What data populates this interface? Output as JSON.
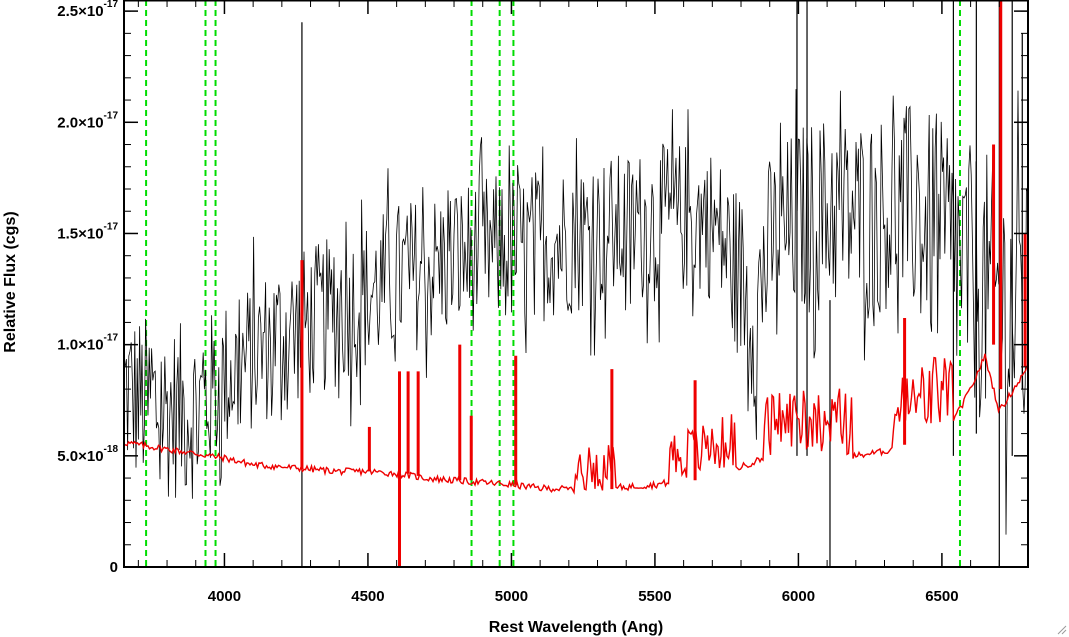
{
  "chart_data": {
    "type": "line",
    "title": "",
    "xlabel": "Rest Wavelength (Ang)",
    "ylabel": "Relative Flux (cgs)",
    "xlim": [
      3650,
      6800
    ],
    "ylim": [
      0,
      2.55e-17
    ],
    "x_ticks": [
      {
        "value": 4000,
        "label": "4000"
      },
      {
        "value": 4500,
        "label": "4500"
      },
      {
        "value": 5000,
        "label": "5000"
      },
      {
        "value": 5500,
        "label": "5500"
      },
      {
        "value": 6000,
        "label": "6000"
      },
      {
        "value": 6500,
        "label": "6500"
      }
    ],
    "y_ticks": [
      {
        "value": 0,
        "mantissa": "0",
        "exponent": ""
      },
      {
        "value": 5e-18,
        "mantissa": "5.0×10",
        "exponent": "-18"
      },
      {
        "value": 1e-17,
        "mantissa": "1.0×10",
        "exponent": "-17"
      },
      {
        "value": 1.5e-17,
        "mantissa": "1.5×10",
        "exponent": "-17"
      },
      {
        "value": 2e-17,
        "mantissa": "2.0×10",
        "exponent": "-17"
      },
      {
        "value": 2.5e-17,
        "mantissa": "2.5×10",
        "exponent": "-17"
      }
    ],
    "grid": false,
    "vertical_markers": {
      "color": "#00dd00",
      "style": "dashed",
      "x": [
        3727,
        3934,
        3969,
        4861,
        4959,
        5007,
        6563
      ]
    },
    "series": [
      {
        "color": "#000000",
        "style": "noisy-spectrum",
        "x": [
          3650,
          3700,
          3800,
          3900,
          4000,
          4100,
          4200,
          4300,
          4400,
          4500,
          4600,
          4700,
          4800,
          4900,
          5000,
          5100,
          5200,
          5300,
          5400,
          5500,
          5600,
          5700,
          5800,
          5850,
          5900,
          6000,
          6100,
          6200,
          6300,
          6400,
          6500,
          6600,
          6700,
          6800
        ],
        "y": [
          8e-18,
          7.5e-18,
          7e-18,
          7e-18,
          8.5e-18,
          9.5e-18,
          1.05e-17,
          1.1e-17,
          1.15e-17,
          1.22e-17,
          1.3e-17,
          1.33e-17,
          1.38e-17,
          1.42e-17,
          1.42e-17,
          1.45e-17,
          1.48e-17,
          1.5e-17,
          1.52e-17,
          1.55e-17,
          1.57e-17,
          1.55e-17,
          1.3e-17,
          1.1e-17,
          1.45e-17,
          1.55e-17,
          1.6e-17,
          1.58e-17,
          1.6e-17,
          1.6e-17,
          1.45e-17,
          1.3e-17,
          1.2e-17,
          1.1e-17
        ],
        "noise": [
          4e-18,
          4e-18,
          4e-18,
          4e-18,
          3.5e-18,
          3.5e-18,
          3.5e-18,
          3.5e-18,
          3.5e-18,
          3.5e-18,
          3.5e-18,
          3.5e-18,
          3.5e-18,
          3.5e-18,
          3.5e-18,
          3.5e-18,
          3.5e-18,
          3.5e-18,
          3.5e-18,
          3.5e-18,
          3.5e-18,
          3.5e-18,
          4e-18,
          4e-18,
          4e-18,
          4.5e-18,
          4.5e-18,
          4.5e-18,
          4.5e-18,
          5e-18,
          5.5e-18,
          6e-18,
          6.5e-18,
          6.5e-18
        ],
        "spikes": [
          {
            "x": 4270,
            "low": 0,
            "high": 2.45e-17
          },
          {
            "x": 5995,
            "low": 5e-18,
            "high": 2.6e-17
          },
          {
            "x": 6030,
            "low": 5e-18,
            "high": 2.6e-17
          },
          {
            "x": 6110,
            "low": 0,
            "high": 1.2e-17
          },
          {
            "x": 6540,
            "low": 5e-18,
            "high": 2.6e-17
          },
          {
            "x": 6620,
            "low": 6e-18,
            "high": 2.6e-17
          },
          {
            "x": 6700,
            "low": 0,
            "high": 2.6e-17
          },
          {
            "x": 6745,
            "low": 5e-18,
            "high": 2.6e-17
          },
          {
            "x": 6780,
            "low": 8e-18,
            "high": 2.4e-17
          }
        ]
      },
      {
        "color": "#ee0000",
        "style": "error-spectrum",
        "x": [
          3650,
          3800,
          3900,
          4000,
          4100,
          4200,
          4300,
          4400,
          4500,
          4600,
          4700,
          4800,
          4900,
          5000,
          5100,
          5200,
          5300,
          5400,
          5500,
          5600,
          5700,
          5800,
          5900,
          6000,
          6100,
          6200,
          6300,
          6400,
          6500,
          6550,
          6600,
          6650,
          6700,
          6750,
          6800
        ],
        "y": [
          5.6e-18,
          5.3e-18,
          5.1e-18,
          4.9e-18,
          4.6e-18,
          4.5e-18,
          4.4e-18,
          4.3e-18,
          4.3e-18,
          4.2e-18,
          4e-18,
          3.9e-18,
          3.8e-18,
          3.7e-18,
          3.55e-18,
          3.5e-18,
          3.5e-18,
          3.6e-18,
          3.7e-18,
          3.9e-18,
          4.2e-18,
          4.5e-18,
          5e-18,
          5.3e-18,
          5e-18,
          5e-18,
          5.2e-18,
          5.6e-18,
          6.2e-18,
          6.8e-18,
          8e-18,
          9.5e-18,
          7e-18,
          8e-18,
          9e-18
        ],
        "spikes": [
          {
            "x": 4270,
            "low": 4.4e-18,
            "high": 1.38e-17
          },
          {
            "x": 4505,
            "low": 4.3e-18,
            "high": 6.3e-18
          },
          {
            "x": 4610,
            "low": 0,
            "high": 8.8e-18
          },
          {
            "x": 4640,
            "low": 4.2e-18,
            "high": 8.8e-18
          },
          {
            "x": 4675,
            "low": 4.1e-18,
            "high": 8.8e-18
          },
          {
            "x": 4820,
            "low": 3.9e-18,
            "high": 1e-17
          },
          {
            "x": 4860,
            "low": 3.9e-18,
            "high": 6.8e-18
          },
          {
            "x": 5015,
            "low": 3.7e-18,
            "high": 9.5e-18
          },
          {
            "x": 5350,
            "low": 3.5e-18,
            "high": 8.9e-18
          },
          {
            "x": 5640,
            "low": 3.9e-18,
            "high": 8.4e-18
          },
          {
            "x": 6370,
            "low": 5.5e-18,
            "high": 1.12e-17
          },
          {
            "x": 6680,
            "low": 1e-17,
            "high": 1.9e-17
          },
          {
            "x": 6705,
            "low": 8e-18,
            "high": 2.6e-17
          },
          {
            "x": 6790,
            "low": 9e-18,
            "high": 1.5e-17
          }
        ],
        "wiggle_ranges": [
          {
            "from": 5220,
            "to": 5360,
            "amp": 2e-18
          },
          {
            "from": 5550,
            "to": 5780,
            "amp": 2.5e-18
          },
          {
            "from": 5880,
            "to": 6190,
            "amp": 3e-18
          },
          {
            "from": 6330,
            "to": 6540,
            "amp": 3.5e-18
          }
        ]
      }
    ]
  }
}
